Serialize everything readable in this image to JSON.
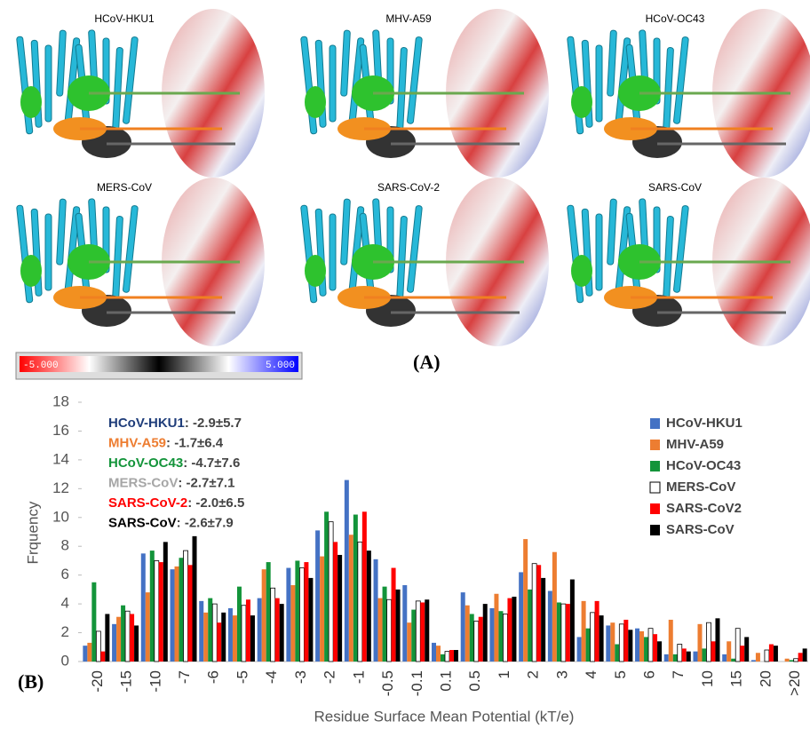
{
  "panel_a": {
    "label": "(A)",
    "structures": [
      "HCoV-HKU1",
      "MHV-A59",
      "HCoV-OC43",
      "MERS-CoV",
      "SARS-CoV-2",
      "SARS-CoV"
    ],
    "colorbar": {
      "min_label": "-5.000",
      "max_label": "5.000"
    }
  },
  "chart_data": {
    "type": "bar",
    "panel_label": "(B)",
    "xlabel": "Residue Surface Mean Potential (kT/e)",
    "ylabel": "Frquency",
    "categories": [
      "-20",
      "-15",
      "-10",
      "-7",
      "-6",
      "-5",
      "-4",
      "-3",
      "-2",
      "-1",
      "-0.5",
      "-0.1",
      "0.1",
      "0.5",
      "1",
      "2",
      "3",
      "4",
      "5",
      "6",
      "7",
      "10",
      "15",
      "20",
      ">20"
    ],
    "series": [
      {
        "name": "HCoV-HKU1",
        "color": "#4472c4",
        "values": [
          1.1,
          2.6,
          7.5,
          6.4,
          4.2,
          3.7,
          4.4,
          6.5,
          9.1,
          12.6,
          7.1,
          5.3,
          1.3,
          4.8,
          3.7,
          6.2,
          4.9,
          1.7,
          2.5,
          2.3,
          0.5,
          0.7,
          0.5,
          0.1,
          0.0
        ]
      },
      {
        "name": "MHV-A59",
        "color": "#ed7d31",
        "values": [
          1.3,
          3.1,
          4.8,
          6.6,
          3.4,
          3.2,
          6.4,
          5.3,
          7.3,
          8.8,
          4.4,
          2.7,
          1.1,
          3.9,
          4.7,
          8.5,
          7.6,
          4.2,
          2.7,
          2.1,
          2.9,
          2.6,
          1.4,
          0.6,
          0.2
        ]
      },
      {
        "name": "HCoV-OC43",
        "color": "#13943a",
        "values": [
          5.5,
          3.9,
          7.7,
          7.2,
          4.4,
          5.2,
          6.9,
          7.0,
          10.4,
          10.2,
          5.2,
          3.6,
          0.5,
          3.3,
          3.5,
          5.0,
          4.1,
          2.3,
          1.2,
          1.7,
          0.5,
          0.9,
          0.2,
          0.0,
          0.1
        ]
      },
      {
        "name": "MERS-CoV",
        "color": "#ffffff",
        "values": [
          2.1,
          3.5,
          7.0,
          7.7,
          4.0,
          3.9,
          5.1,
          6.5,
          9.7,
          8.3,
          4.3,
          4.2,
          0.7,
          2.8,
          3.3,
          6.8,
          4.0,
          3.4,
          2.6,
          2.3,
          1.2,
          2.7,
          2.3,
          0.8,
          0.2
        ]
      },
      {
        "name": "SARS-CoV2",
        "color": "#ff0000",
        "values": [
          0.7,
          3.3,
          6.9,
          6.7,
          2.7,
          4.3,
          4.4,
          6.9,
          8.3,
          10.4,
          6.5,
          4.1,
          0.8,
          3.1,
          4.4,
          6.7,
          4.0,
          4.2,
          2.9,
          1.9,
          0.9,
          1.4,
          1.1,
          1.2,
          0.6
        ]
      },
      {
        "name": "SARS-CoV",
        "color": "#000000",
        "values": [
          3.3,
          2.5,
          8.3,
          8.7,
          3.4,
          3.2,
          4.0,
          5.8,
          7.4,
          7.7,
          5.0,
          4.3,
          0.8,
          4.0,
          4.5,
          5.8,
          5.7,
          3.2,
          2.2,
          1.4,
          0.7,
          3.0,
          1.7,
          1.1,
          0.9
        ]
      }
    ],
    "ylim": [
      0,
      18
    ],
    "yticks": [
      0,
      2,
      4,
      6,
      8,
      10,
      12,
      14,
      16,
      18
    ],
    "legend": "upper right",
    "annotations": [
      {
        "name": "HCoV-HKU1",
        "color": "#1f3d7a",
        "stat": ": -2.9±5.7"
      },
      {
        "name": "MHV-A59",
        "color": "#ed7d31",
        "stat": ": -1.7±6.4"
      },
      {
        "name": "HCoV-OC43",
        "color": "#13943a",
        "stat": ": -4.7±7.6"
      },
      {
        "name": "MERS-CoV",
        "color": "#a6a6a6",
        "stat": ": -2.7±7.1"
      },
      {
        "name": "SARS-CoV-2",
        "color": "#ff0000",
        "stat": ": -2.0±6.5"
      },
      {
        "name": "SARS-CoV",
        "color": "#000000",
        "stat": ": -2.6±7.9"
      }
    ]
  }
}
